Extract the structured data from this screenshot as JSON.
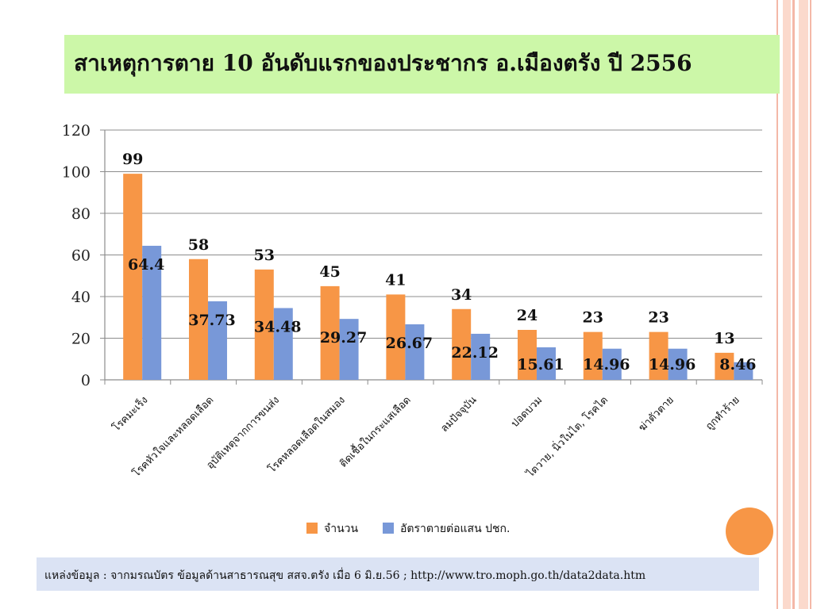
{
  "title": "สาเหตุการตาย 10 อันดับแรกของประชากร อ.เมืองตรัง ปี 2556",
  "source": "แหล่งข้อมูล : จากมรณบัตร ข้อมูลด้านสาธารณสุข สสจ.ตรัง เมื่อ 6 มิ.ย.56 ; http://www.tro.moph.go.th/data2data.htm",
  "colors": {
    "series1": "#f79646",
    "series2": "#7898d8",
    "title_bg": "#ccf7a8",
    "source_bg": "#dbe3f4",
    "accent_circle": "#f79646"
  },
  "chart_data": {
    "type": "bar",
    "title": "",
    "xlabel": "",
    "ylabel": "",
    "ylim": [
      0,
      120
    ],
    "yticks": [
      0,
      20,
      40,
      60,
      80,
      100,
      120
    ],
    "grid": true,
    "legend_position": "bottom",
    "categories": [
      "โรคมะเร็ง",
      "โรคหัวใจและหลอดเลือด",
      "อุบัติเหตุจากการขนส่ง",
      "โรคหลอดเลือดในสมอง",
      "ติดเชื้อในกระแสเลือด",
      "ลมปัจจุบัน",
      "ปอดบวม",
      "ไตวาย, นิ่วในไต, โรคไต",
      "ฆ่าตัวตาย",
      "ถูกทำร้าย"
    ],
    "series": [
      {
        "name": "จำนวน",
        "values": [
          99,
          58,
          53,
          45,
          41,
          34,
          24,
          23,
          23,
          13
        ],
        "labels": [
          "99",
          "58",
          "53",
          "45",
          "41",
          "34",
          "24",
          "23",
          "23",
          "13"
        ]
      },
      {
        "name": "อัตราตายต่อแสน ปชก.",
        "values": [
          64.4,
          37.73,
          34.48,
          29.27,
          26.67,
          22.12,
          15.61,
          14.96,
          14.96,
          8.46
        ],
        "labels": [
          "64.4",
          "37.73",
          "34.48",
          "29.27",
          "26.67",
          "22.12",
          "15.61",
          "14.96",
          "14.96",
          "8.46"
        ]
      }
    ]
  }
}
